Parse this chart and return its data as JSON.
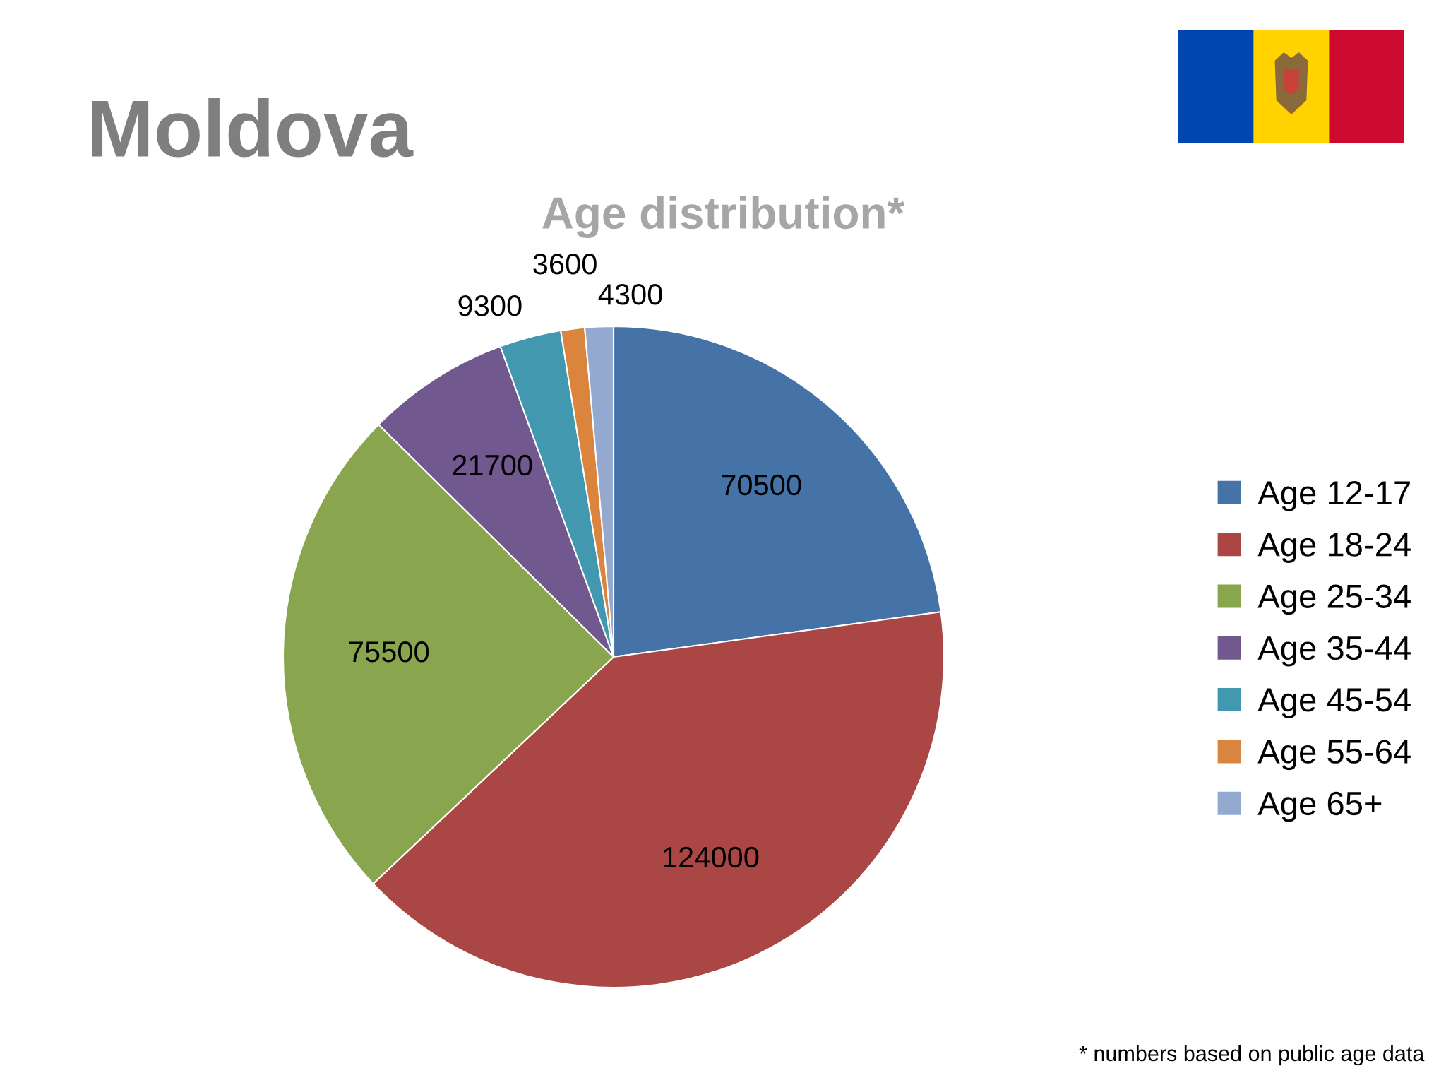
{
  "chart_data": {
    "type": "pie",
    "title": "Moldova",
    "subtitle": "Age distribution*",
    "categories": [
      "Age 12-17",
      "Age 18-24",
      "Age 25-34",
      "Age 35-44",
      "Age 45-54",
      "Age 55-64",
      "Age 65+"
    ],
    "values": [
      70500,
      124000,
      75500,
      21700,
      9300,
      3600,
      4300
    ],
    "colors": [
      "#4572a7",
      "#aa4643",
      "#89a54e",
      "#71588f",
      "#4198af",
      "#db843d",
      "#93a9cf"
    ],
    "data_labels": true,
    "legend": "right",
    "annotations": [
      "* numbers based on public age data"
    ]
  }
}
